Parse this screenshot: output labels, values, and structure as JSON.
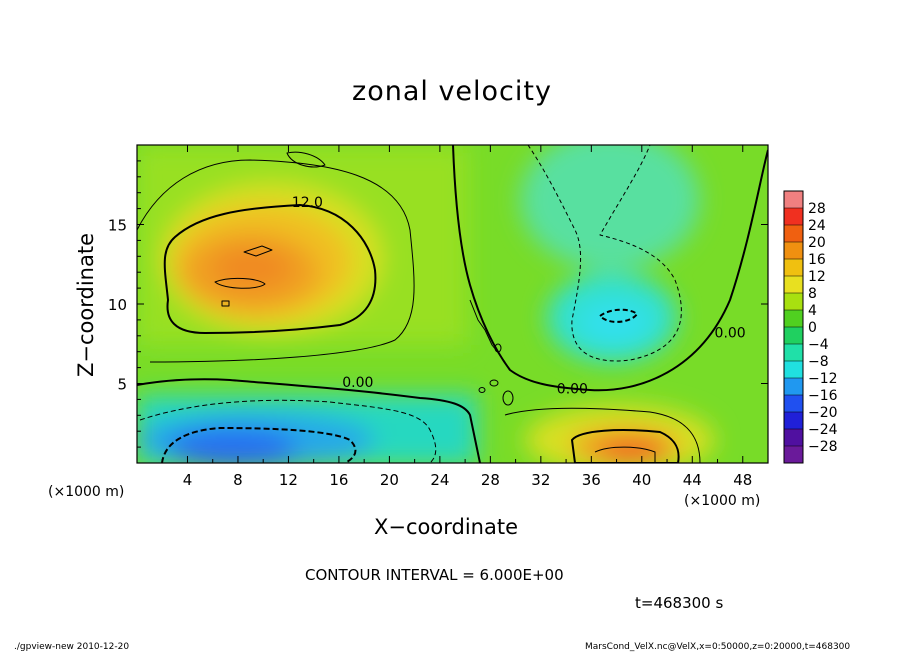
{
  "figure": {
    "title": "zonal velocity",
    "xlabel": "X−coordinate",
    "ylabel": "Z−coordinate",
    "x_unit_left": "(×1000 m)",
    "x_unit_right": "(×1000 m)",
    "contour_interval_text": "CONTOUR INTERVAL = 6.000E+00",
    "time_text": "t=468300 s",
    "footer_left": "./gpview-new  2010-12-20",
    "footer_right": "MarsCond_VelX.nc@VelX,x=0:50000,z=0:20000,t=468300"
  },
  "chart_data": {
    "type": "heatmap",
    "title": "zonal velocity",
    "xlabel": "X−coordinate",
    "ylabel": "Z−coordinate",
    "x_unit": "(×1000 m)",
    "xlim": [
      0,
      50
    ],
    "ylim": [
      0,
      20
    ],
    "x_ticks": [
      4,
      8,
      12,
      16,
      20,
      24,
      28,
      32,
      36,
      40,
      44,
      48
    ],
    "y_ticks": [
      5,
      10,
      15
    ],
    "contour_interval": 6,
    "contour_labels": [
      {
        "text": "12.0",
        "x": 13.5,
        "y": 16.4
      },
      {
        "text": "0.00",
        "x": 17.5,
        "y": 5.1
      },
      {
        "text": "0.00",
        "x": 34.5,
        "y": 4.7
      },
      {
        "text": "0.00",
        "x": 47,
        "y": 8.2
      }
    ],
    "colorbar": {
      "levels": [
        28,
        24,
        20,
        16,
        12,
        8,
        4,
        0,
        -4,
        -8,
        -12,
        -16,
        -20,
        -24,
        -28
      ],
      "labels": [
        "28",
        "24",
        "20",
        "16",
        "12",
        "8",
        "4",
        "0",
        "−4",
        "−8",
        "−12",
        "−16",
        "−20",
        "−24",
        "−28"
      ],
      "colors": [
        "#f08080",
        "#f03020",
        "#f06010",
        "#f09010",
        "#f0c010",
        "#e8e020",
        "#a8e010",
        "#50d020",
        "#20d060",
        "#20e0a8",
        "#20e0e0",
        "#2098f0",
        "#2050f0",
        "#2020d8",
        "#5010a0",
        "#6a1a9a"
      ]
    },
    "features": [
      {
        "name": "positive jet maximum",
        "x": 9,
        "z": 11.5,
        "value": 18
      },
      {
        "name": "low-level positive maximum",
        "x": 39,
        "z": 0.8,
        "value": 20
      },
      {
        "name": "low-level negative minimum",
        "x": 8,
        "z": 1,
        "value": -17
      },
      {
        "name": "upper negative minimum",
        "x": 38.5,
        "z": 9,
        "value": -13
      }
    ]
  }
}
